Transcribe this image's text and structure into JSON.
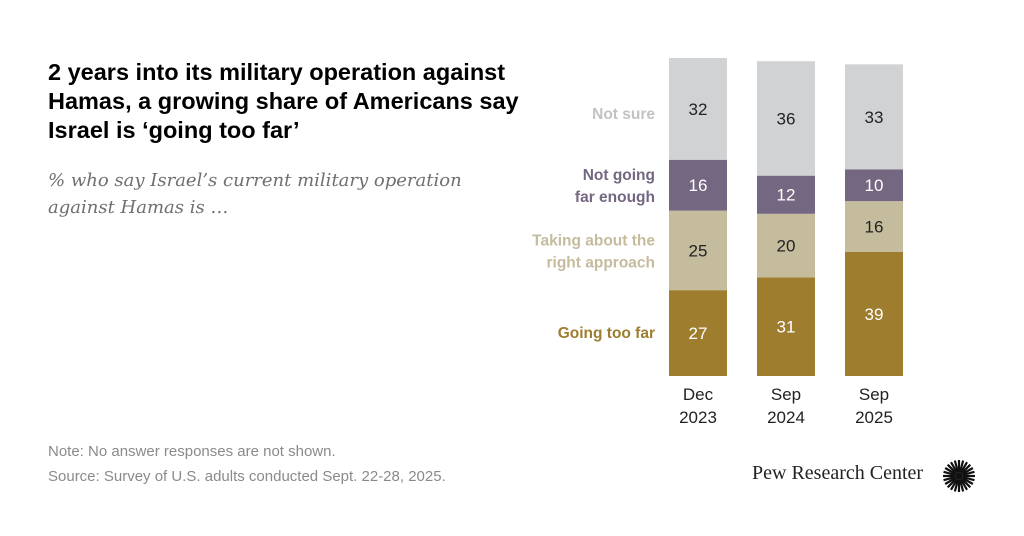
{
  "title": "2 years into its military operation against Hamas, a growing share of Americans say Israel is ‘going too far’",
  "subtitle": "% who say Israel’s current military operation against Hamas is …",
  "note": "Note: No answer responses are not shown.",
  "source": "Source: Survey of U.S. adults conducted Sept. 22-28, 2025.",
  "logo_text": "Pew Research Center",
  "chart_data": {
    "type": "bar",
    "stacked": true,
    "orientation": "vertical",
    "categories": [
      [
        "Dec",
        "2023"
      ],
      [
        "Sep",
        "2024"
      ],
      [
        "Sep",
        "2025"
      ]
    ],
    "series": [
      {
        "name": "Going too far",
        "values": [
          27,
          31,
          39
        ],
        "color": "#9e7d2f",
        "label_color": "#9e7d2f",
        "text_color": "#ffffff"
      },
      {
        "name": "Taking about the right approach",
        "name_lines": [
          "Taking about the",
          "right approach"
        ],
        "values": [
          25,
          20,
          16
        ],
        "color": "#c5bc9d",
        "label_color": "#c5bc9d",
        "text_color": "#222222"
      },
      {
        "name": "Not going far enough",
        "name_lines": [
          "Not going",
          "far enough"
        ],
        "values": [
          16,
          12,
          10
        ],
        "color": "#746781",
        "label_color": "#746781",
        "text_color": "#ffffff"
      },
      {
        "name": "Not sure",
        "values": [
          32,
          36,
          33
        ],
        "color": "#d1d2d4",
        "label_color": "#c2c2c2",
        "text_color": "#222222"
      }
    ],
    "ylim": [
      0,
      100
    ],
    "grid": false,
    "legend": "left-of-bars"
  }
}
